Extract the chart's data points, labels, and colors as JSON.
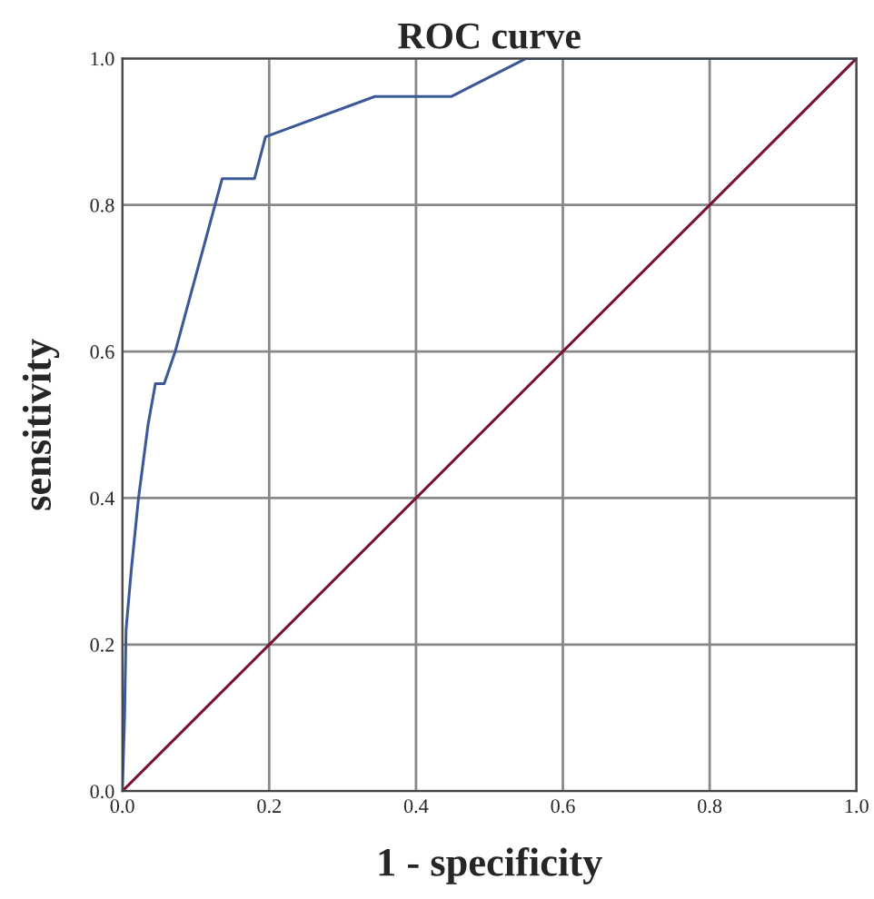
{
  "chart_data": {
    "type": "line",
    "title": "ROC curve",
    "xlabel": "1 - specificity",
    "ylabel": "sensitivity",
    "series": [
      {
        "color": "#3b5998",
        "x": [
          0,
          0.003,
          0.005,
          0.012,
          0.022,
          0.035,
          0.045,
          0.057,
          0.072,
          0.136,
          0.18,
          0.195,
          0.344,
          0.448,
          0.55,
          1.0
        ],
        "values": [
          0,
          0.1,
          0.22,
          0.3,
          0.4,
          0.5,
          0.556,
          0.556,
          0.6,
          0.836,
          0.836,
          0.893,
          0.948,
          0.948,
          1.0,
          1.0
        ]
      },
      {
        "color": "#7a1030",
        "x": [
          0,
          1
        ],
        "values": [
          0,
          1
        ]
      }
    ],
    "xlim": [
      0,
      1
    ],
    "ylim": [
      0,
      1
    ],
    "xticks": [
      {
        "value": 0,
        "label": "0.0"
      },
      {
        "value": 0.2,
        "label": "0.2"
      },
      {
        "value": 0.4,
        "label": "0.4"
      },
      {
        "value": 0.6,
        "label": "0.6"
      },
      {
        "value": 0.8,
        "label": "0.8"
      },
      {
        "value": 1,
        "label": "1.0"
      }
    ],
    "yticks": [
      {
        "value": 0,
        "label": "0.0"
      },
      {
        "value": 0.2,
        "label": "0.2"
      },
      {
        "value": 0.4,
        "label": "0.4"
      },
      {
        "value": 0.6,
        "label": "0.6"
      },
      {
        "value": 0.8,
        "label": "0.8"
      },
      {
        "value": 1,
        "label": "1.0"
      }
    ],
    "grid": true
  }
}
